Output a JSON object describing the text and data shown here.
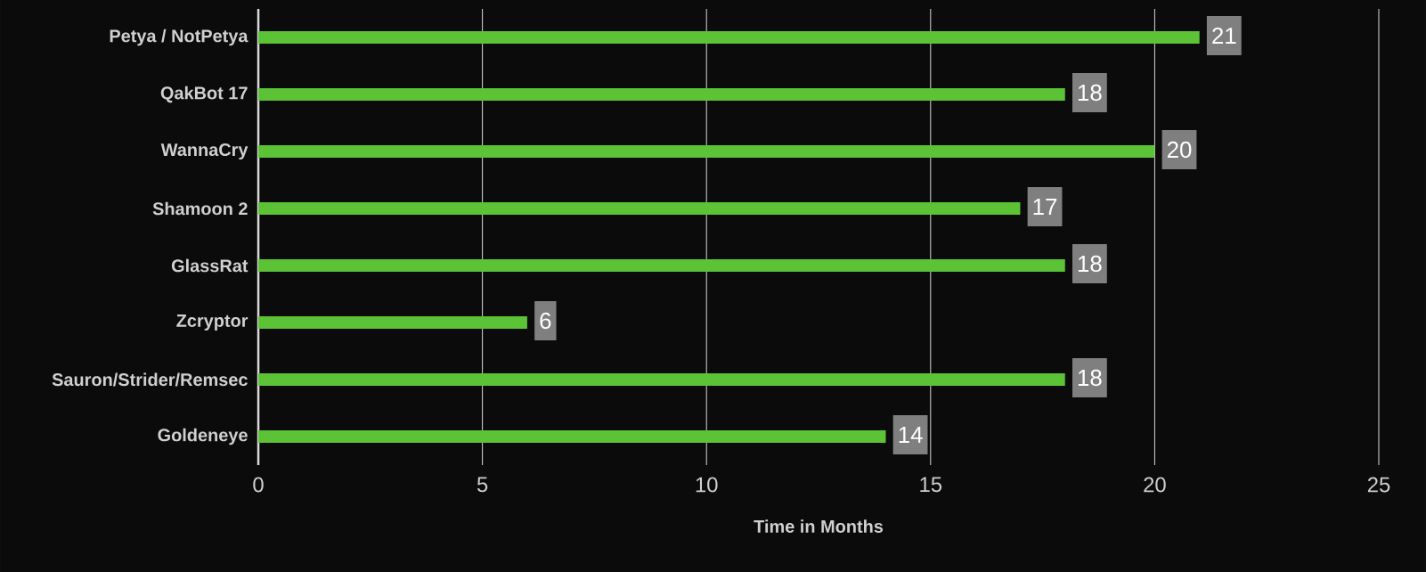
{
  "chart_data": {
    "type": "bar",
    "orientation": "horizontal",
    "xlabel": "Time in Months",
    "categories": [
      "Petya / NotPetya",
      "QakBot 17",
      "WannaCry",
      "Shamoon 2",
      "GlassRat",
      "Zcryptor",
      "Sauron/Strider/Remsec",
      "Goldeneye"
    ],
    "values": [
      21,
      18,
      20,
      17,
      18,
      6,
      18,
      14
    ],
    "color": "#5cc236",
    "xlim": [
      0,
      25
    ],
    "xticks": [
      0,
      5,
      10,
      15,
      20,
      25
    ],
    "grid": "x",
    "data_labels": true
  }
}
